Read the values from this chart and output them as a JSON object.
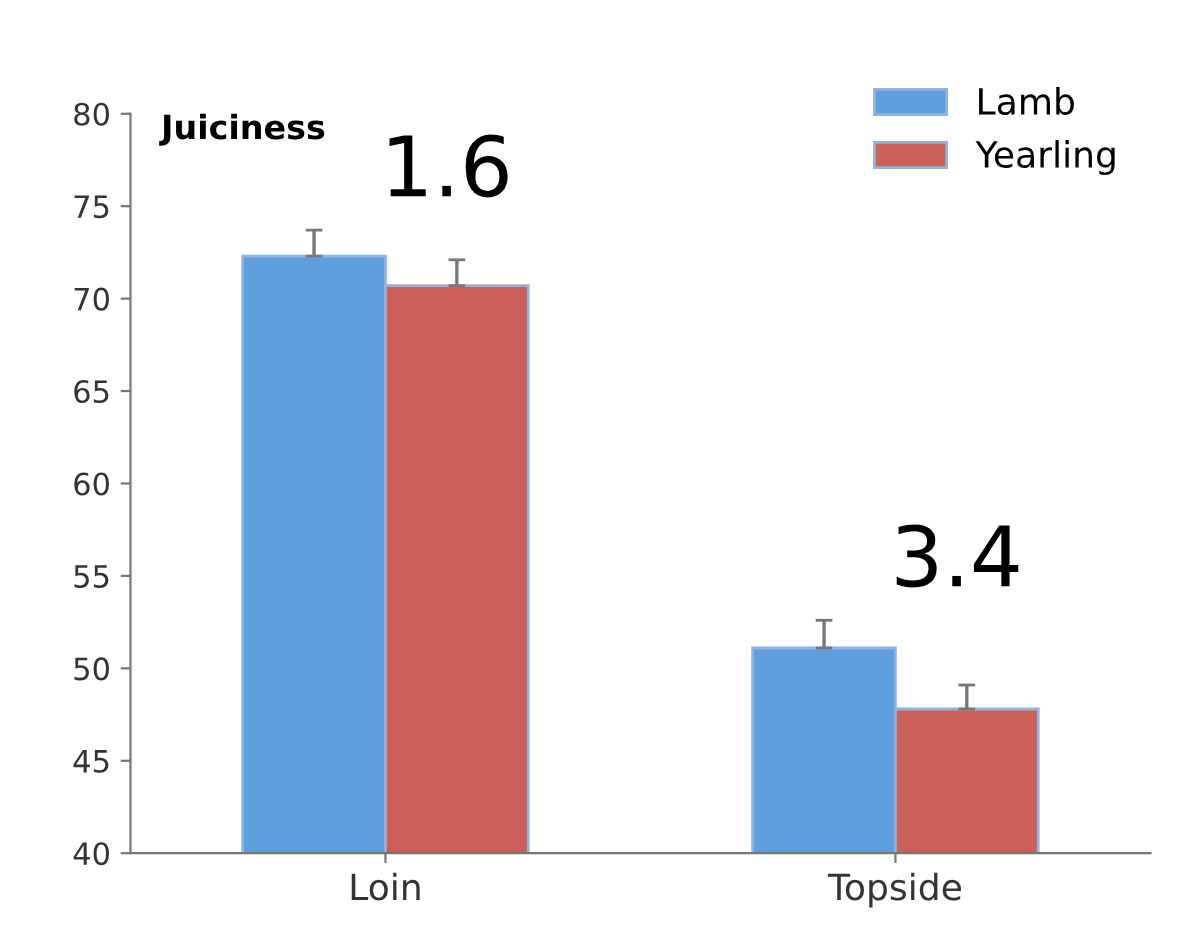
{
  "chart_data": {
    "type": "bar",
    "title": "Juiciness",
    "categories": [
      "Loin",
      "Topside"
    ],
    "series": [
      {
        "name": "Lamb",
        "color": "#5f9edc",
        "values": [
          72.3,
          51.1
        ],
        "errors": [
          [
            72.3,
            73.7
          ],
          [
            51.1,
            52.6
          ]
        ]
      },
      {
        "name": "Yearling",
        "color": "#cc5f58",
        "values": [
          70.7,
          47.8
        ],
        "errors": [
          [
            70.7,
            72.1
          ],
          [
            47.8,
            49.1
          ]
        ]
      }
    ],
    "annotations": [
      "1.6",
      "3.4"
    ],
    "ylim": [
      40,
      80
    ],
    "yticks": [
      40,
      45,
      50,
      55,
      60,
      65,
      70,
      75,
      80
    ],
    "grid": false,
    "legend": "top right"
  }
}
